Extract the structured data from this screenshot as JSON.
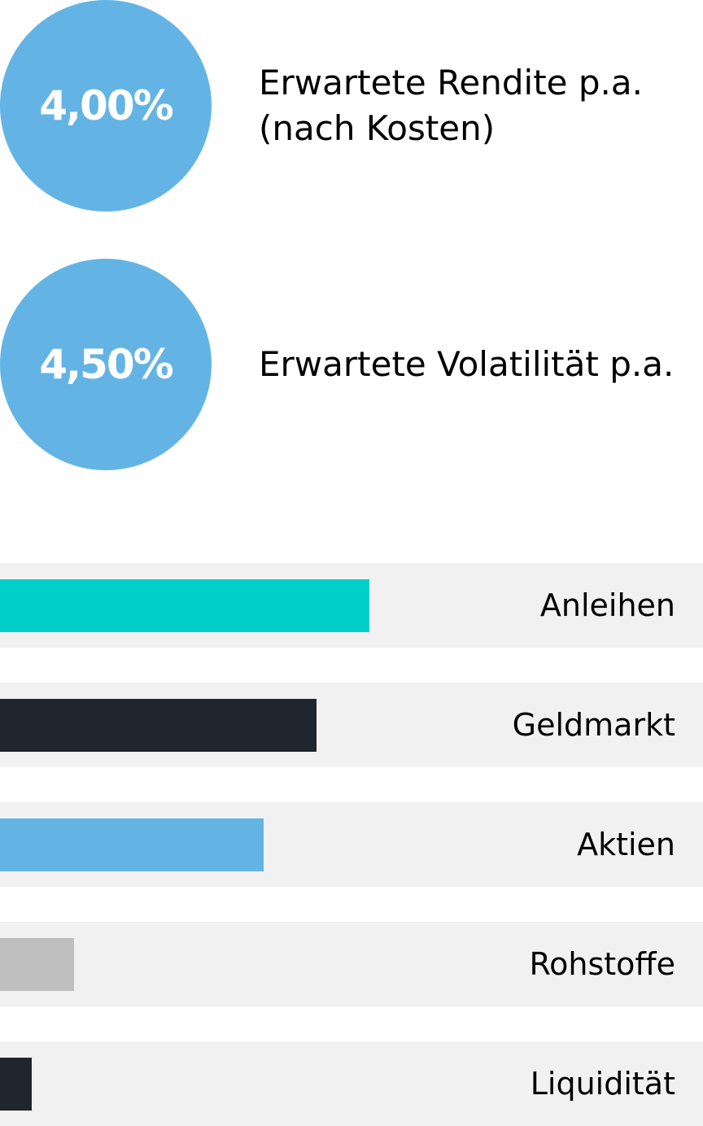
{
  "metrics": [
    {
      "value": "4,00%",
      "label": "Erwartete Rendite p.a.\n(nach Kosten)"
    },
    {
      "value": "4,50%",
      "label": "Erwartete Volatilität p.a."
    }
  ],
  "colors": {
    "circle": "#63b4e4",
    "row_background": "#f1f1f1"
  },
  "chart_data": {
    "type": "bar",
    "orientation": "horizontal",
    "categories": [
      "Anleihen",
      "Geldmarkt",
      "Aktien",
      "Rohstoffe",
      "Liquidität"
    ],
    "values": [
      52.5,
      45,
      37.5,
      10.5,
      4.5
    ],
    "unit": "%",
    "xlim": [
      0,
      100
    ],
    "grid": false,
    "colors": [
      "#00cfc9",
      "#1f262e",
      "#63b4e4",
      "#bfbfbf",
      "#1f262e"
    ]
  }
}
